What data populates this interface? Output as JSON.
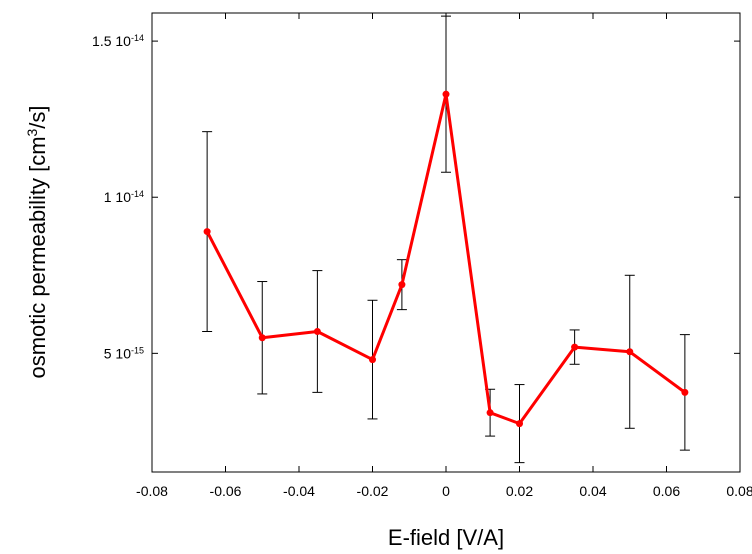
{
  "chart_data": {
    "type": "line",
    "xlabel": "E-field [V/A]",
    "ylabel": {
      "before": "osmotic permeability [cm",
      "sup": "3",
      "after": "/s]"
    },
    "xlim": [
      -0.08,
      0.08
    ],
    "ylim": [
      1.2e-15,
      1.59e-14
    ],
    "x_ticks": [
      {
        "value": -0.08,
        "label": "-0.08"
      },
      {
        "value": -0.06,
        "label": "-0.06"
      },
      {
        "value": -0.04,
        "label": "-0.04"
      },
      {
        "value": -0.02,
        "label": "-0.02"
      },
      {
        "value": 0,
        "label": "0"
      },
      {
        "value": 0.02,
        "label": "0.02"
      },
      {
        "value": 0.04,
        "label": "0.04"
      },
      {
        "value": 0.06,
        "label": "0.06"
      },
      {
        "value": 0.08,
        "label": "0.08"
      }
    ],
    "y_ticks": [
      {
        "value": 5e-15,
        "mantissa": "5 10",
        "exponent": "-15"
      },
      {
        "value": 1e-14,
        "mantissa": "1 10",
        "exponent": "-14"
      },
      {
        "value": 1.5e-14,
        "mantissa": "1.5 10",
        "exponent": "-14"
      }
    ],
    "grid": false,
    "series": [
      {
        "color": "#ff0000",
        "x": [
          -0.065,
          -0.05,
          -0.035,
          -0.02,
          -0.012,
          0.0,
          0.012,
          0.02,
          0.035,
          0.05,
          0.065
        ],
        "y": [
          8.9e-15,
          5.5e-15,
          5.7e-15,
          4.8e-15,
          7.2e-15,
          1.33e-14,
          3.1e-15,
          2.75e-15,
          5.2e-15,
          5.05e-15,
          3.75e-15
        ],
        "error": [
          3.2e-15,
          1.8e-15,
          1.95e-15,
          1.9e-15,
          8e-16,
          2.5e-15,
          7.5e-16,
          1.25e-15,
          5.5e-16,
          2.45e-15,
          1.85e-15
        ]
      }
    ]
  }
}
